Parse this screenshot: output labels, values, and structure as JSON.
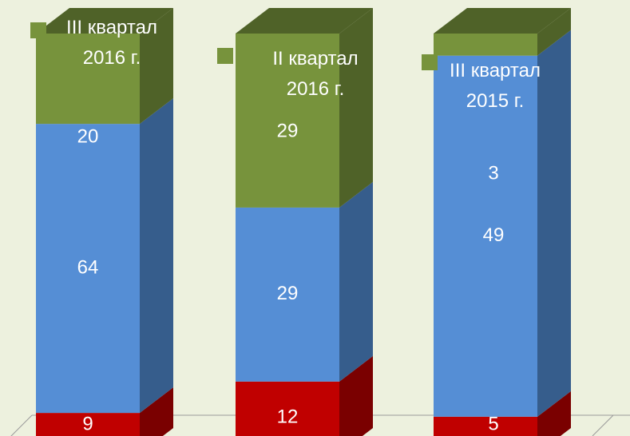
{
  "chart_data": {
    "type": "bar",
    "stacking": "percent",
    "categories": [
      "III квартал 2016 г.",
      "II квартал 2016 г.",
      "III квартал 2015 г."
    ],
    "series": [
      {
        "color": "#c00000",
        "side_color": "#7a0000",
        "values": [
          9,
          12,
          5
        ]
      },
      {
        "color": "#558ed5",
        "side_color": "#365d8c",
        "values": [
          64,
          29,
          49
        ]
      },
      {
        "color": "#77933c",
        "side_color": "#4f6228",
        "values": [
          20,
          29,
          3
        ]
      }
    ]
  }
}
